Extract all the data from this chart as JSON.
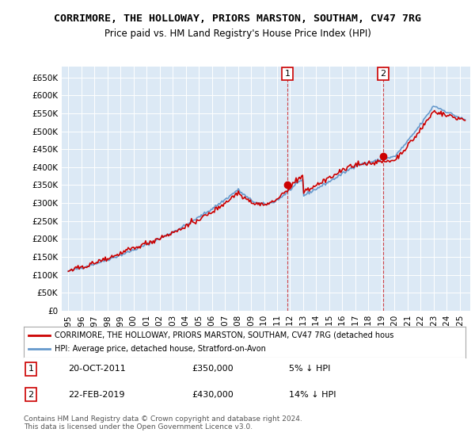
{
  "title": "CORRIMORE, THE HOLLOWAY, PRIORS MARSTON, SOUTHAM, CV47 7RG",
  "subtitle": "Price paid vs. HM Land Registry's House Price Index (HPI)",
  "ylabel": "",
  "ylim": [
    0,
    680000
  ],
  "yticks": [
    0,
    50000,
    100000,
    150000,
    200000,
    250000,
    300000,
    350000,
    400000,
    450000,
    500000,
    550000,
    600000,
    650000
  ],
  "xlim_start": 1995.0,
  "xlim_end": 2025.5,
  "bg_color": "#dce9f5",
  "plot_bg": "#dce9f5",
  "red_color": "#cc0000",
  "blue_color": "#6699cc",
  "marker1_x": 2011.8,
  "marker1_y": 350000,
  "marker1_label": "1",
  "marker2_x": 2019.15,
  "marker2_y": 430000,
  "marker2_label": "2",
  "legend_label_red": "CORRIMORE, THE HOLLOWAY, PRIORS MARSTON, SOUTHAM, CV47 7RG (detached hous",
  "legend_label_blue": "HPI: Average price, detached house, Stratford-on-Avon",
  "note1_num": "1",
  "note1_date": "20-OCT-2011",
  "note1_price": "£350,000",
  "note1_hpi": "5% ↓ HPI",
  "note2_num": "2",
  "note2_date": "22-FEB-2019",
  "note2_price": "£430,000",
  "note2_hpi": "14% ↓ HPI",
  "footer": "Contains HM Land Registry data © Crown copyright and database right 2024.\nThis data is licensed under the Open Government Licence v3.0."
}
